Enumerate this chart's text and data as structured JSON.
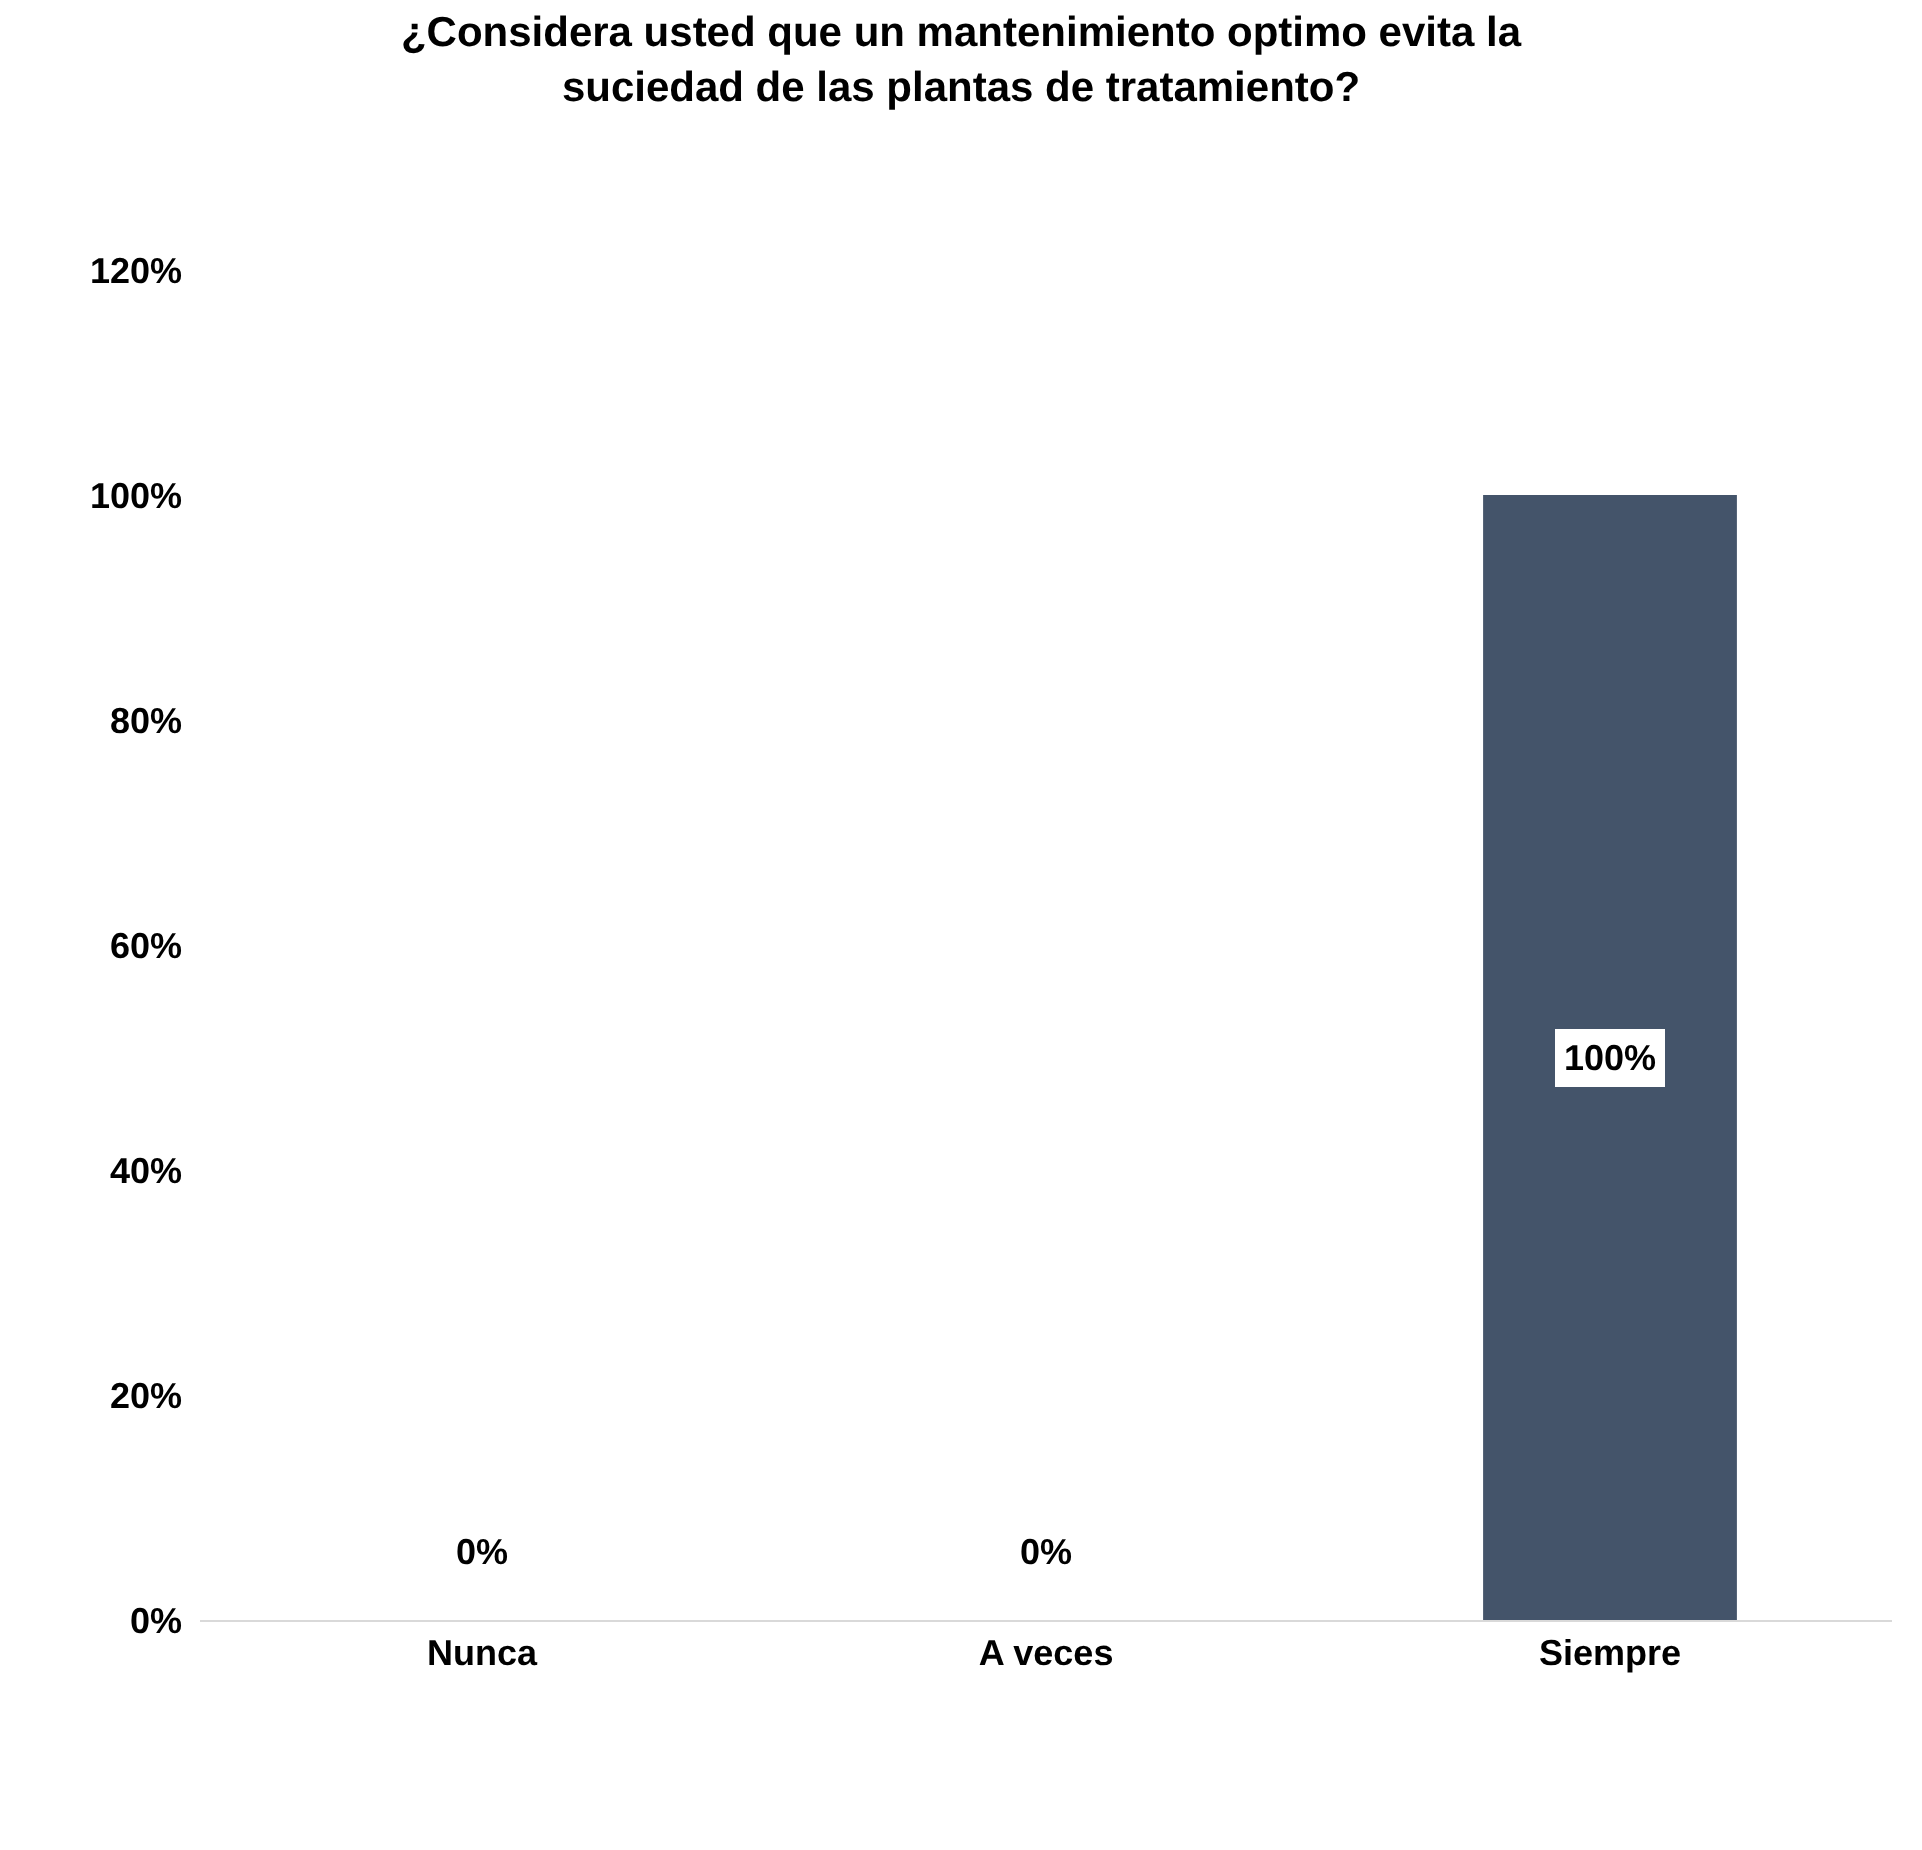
{
  "chart_data": {
    "type": "bar",
    "title": "¿Considera usted que un mantenimiento optimo evita la\nsuciedad de las plantas de tratamiento?",
    "categories": [
      "Nunca",
      "A veces",
      "Siempre"
    ],
    "values": [
      0,
      0,
      100
    ],
    "value_labels": [
      "0%",
      "0%",
      "100%"
    ],
    "color": "#44546a",
    "ylim": [
      0,
      120
    ],
    "yticks": [
      {
        "value": 0,
        "label": "0%"
      },
      {
        "value": 20,
        "label": "20%"
      },
      {
        "value": 40,
        "label": "40%"
      },
      {
        "value": 60,
        "label": "60%"
      },
      {
        "value": 80,
        "label": "80%"
      },
      {
        "value": 100,
        "label": "100%"
      },
      {
        "value": 120,
        "label": "120%"
      }
    ],
    "grid": false
  }
}
